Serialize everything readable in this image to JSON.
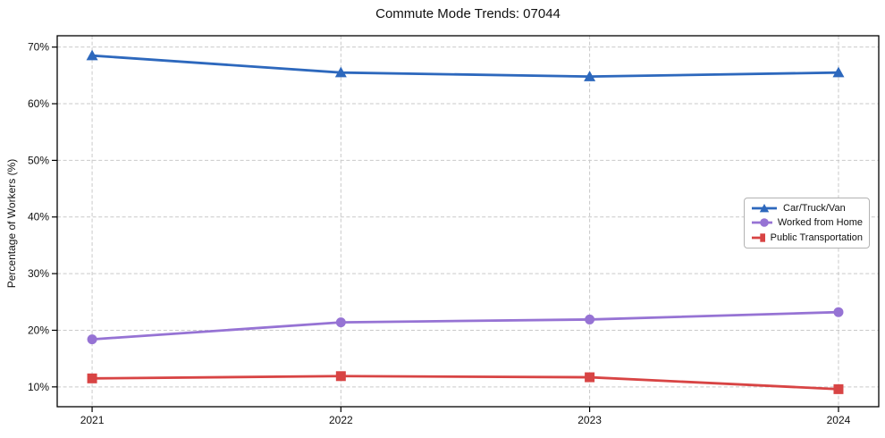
{
  "title": "Commute Mode Trends: 07044",
  "axes": {
    "ylabel": "Percentage of Workers (%)",
    "xlabel": "",
    "xtick_labels": [
      "2021",
      "2022",
      "2023",
      "2024"
    ],
    "ytick_labels": [
      "10%",
      "20%",
      "30%",
      "40%",
      "50%",
      "60%",
      "70%"
    ]
  },
  "legend": {
    "position": "center-right",
    "entries": [
      "Car/Truck/Van",
      "Worked from Home",
      "Public Transportation"
    ]
  },
  "chart_data": {
    "type": "line",
    "title": "Commute Mode Trends: 07044",
    "xlabel": "",
    "ylabel": "Percentage of Workers (%)",
    "x": [
      2021,
      2022,
      2023,
      2024
    ],
    "series": [
      {
        "name": "Car/Truck/Van",
        "color": "#2d68bd",
        "marker": "triangle",
        "values": [
          68.5,
          65.5,
          64.8,
          65.5
        ]
      },
      {
        "name": "Worked from Home",
        "color": "#9673d4",
        "marker": "circle",
        "values": [
          18.4,
          21.4,
          21.9,
          23.2
        ]
      },
      {
        "name": "Public Transportation",
        "color": "#d84444",
        "marker": "square",
        "values": [
          11.5,
          11.9,
          11.7,
          9.6
        ]
      }
    ],
    "yticks": [
      10,
      20,
      30,
      40,
      50,
      60,
      70
    ],
    "ytick_labels": [
      "10%",
      "20%",
      "30%",
      "40%",
      "50%",
      "60%",
      "70%"
    ],
    "ylim": [
      6.5,
      72.0
    ],
    "grid": true,
    "grid_style": "dashed",
    "legend_position": "center-right",
    "colors": {
      "grid": "#c9c9c9",
      "spine": "#000000",
      "text": "#111111"
    }
  }
}
